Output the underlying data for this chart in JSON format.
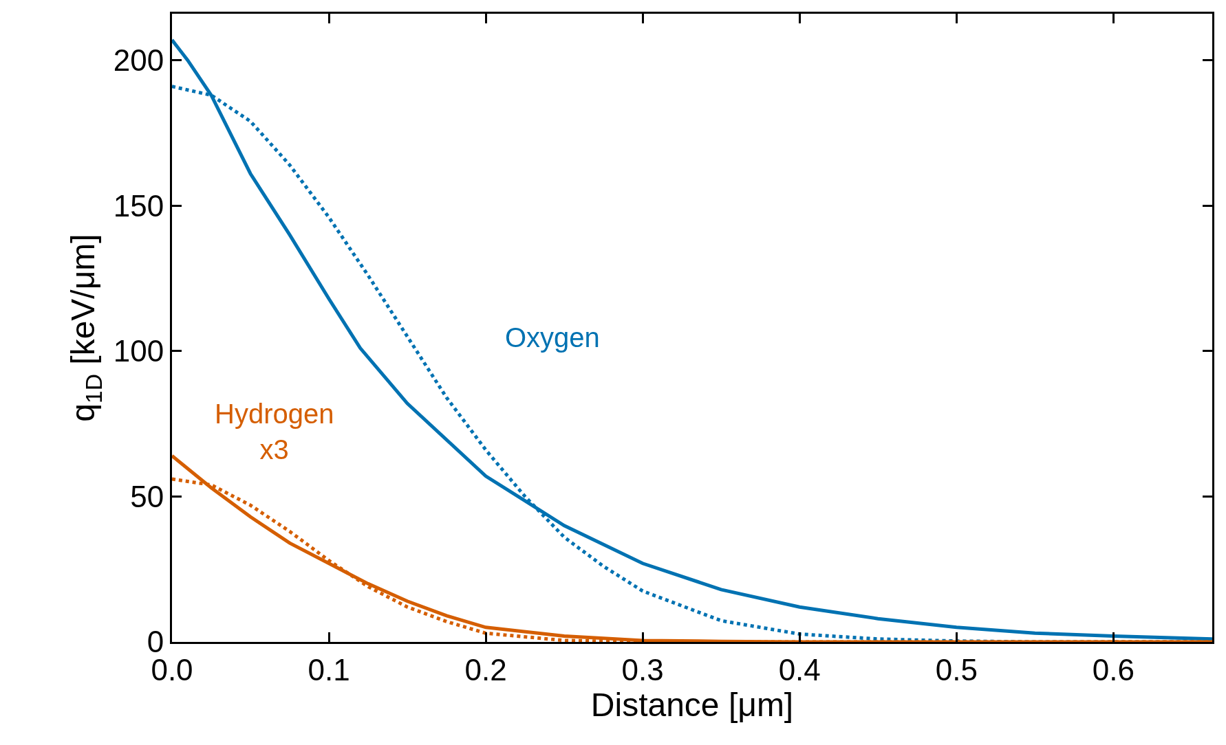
{
  "chart_data": {
    "type": "line",
    "xlabel": "Distance [μm]",
    "ylabel": "q$_{1D}$ [keV/μm]",
    "xlim": [
      0,
      0.663
    ],
    "ylim": [
      0,
      216
    ],
    "xticks": [
      {
        "value": 0,
        "label": "0.0"
      },
      0.1,
      0.2,
      0.3,
      0.4,
      0.5,
      0.6
    ],
    "yticks": [
      0,
      50,
      100,
      150,
      200
    ],
    "series": [
      {
        "color": "#0072b2",
        "line_style": "solid",
        "x": [
          0,
          0.01,
          0.025,
          0.05,
          0.075,
          0.1,
          0.12,
          0.15,
          0.2,
          0.25,
          0.3,
          0.35,
          0.4,
          0.45,
          0.5,
          0.55,
          0.6,
          0.663
        ],
        "values": [
          207,
          200,
          188,
          161,
          140,
          118,
          101,
          82,
          57,
          40,
          27,
          18,
          12,
          8,
          5,
          3,
          2,
          1
        ]
      },
      {
        "color": "#0072b2",
        "line_style": "dotted",
        "x": [
          0,
          0.025,
          0.05,
          0.075,
          0.1,
          0.125,
          0.15,
          0.175,
          0.2,
          0.225,
          0.25,
          0.275,
          0.3,
          0.35,
          0.4,
          0.45,
          0.5,
          0.55,
          0.6,
          0.663
        ],
        "values": [
          191,
          188,
          179,
          164,
          146,
          126,
          105,
          84,
          66,
          50,
          36,
          26,
          17.5,
          7.3,
          2.7,
          1,
          0.3,
          0,
          0,
          0
        ]
      },
      {
        "color": "#d55e00",
        "line_style": "solid",
        "x": [
          0,
          0.025,
          0.05,
          0.075,
          0.1,
          0.125,
          0.15,
          0.175,
          0.2,
          0.25,
          0.3,
          0.35,
          0.4,
          0.5,
          0.6,
          0.663
        ],
        "values": [
          64,
          53,
          43,
          34,
          27,
          20,
          14,
          9,
          5,
          2,
          0.5,
          0.2,
          0,
          0,
          0,
          0
        ]
      },
      {
        "color": "#d55e00",
        "line_style": "dotted",
        "x": [
          0,
          0.025,
          0.05,
          0.075,
          0.1,
          0.125,
          0.15,
          0.175,
          0.2,
          0.25,
          0.3,
          0.4,
          0.5,
          0.6,
          0.663
        ],
        "values": [
          56,
          54,
          47,
          38,
          28,
          19,
          12,
          7,
          3,
          0.5,
          0,
          0,
          0,
          0,
          0
        ]
      }
    ],
    "annotations": [
      "Oxygen",
      "Hydrogen\nx3"
    ]
  }
}
